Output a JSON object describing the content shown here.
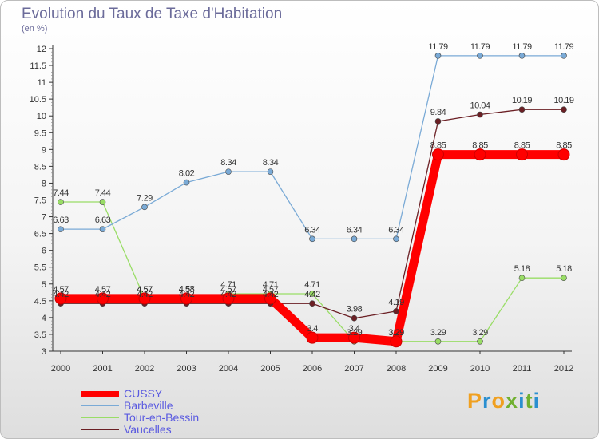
{
  "chart_data": {
    "type": "line",
    "title": "Evolution du Taux de Taxe d'Habitation",
    "ylabel": "(en %)",
    "categories": [
      "2000",
      "2001",
      "2002",
      "2003",
      "2004",
      "2005",
      "2006",
      "2007",
      "2008",
      "2009",
      "2010",
      "2011",
      "2012"
    ],
    "ylim": [
      3,
      12
    ],
    "yticks": [
      "3",
      "3.5",
      "4",
      "4.5",
      "5",
      "5.5",
      "6",
      "6.5",
      "7",
      "7.5",
      "8",
      "8.5",
      "9",
      "9.5",
      "10",
      "10.5",
      "11",
      "11.5",
      "12"
    ],
    "series": [
      {
        "name": "CUSSY",
        "color": "#ff0000",
        "values": [
          4.57,
          4.57,
          4.57,
          4.57,
          4.57,
          4.57,
          3.4,
          3.4,
          3.29,
          8.85,
          8.85,
          8.85,
          8.85
        ]
      },
      {
        "name": "Barbeville",
        "color": "#7aaad6",
        "values": [
          6.63,
          6.63,
          7.29,
          8.02,
          8.34,
          8.34,
          6.34,
          6.34,
          6.34,
          11.79,
          11.79,
          11.79,
          11.79
        ]
      },
      {
        "name": "Tour-en-Bessin",
        "color": "#99dd66",
        "values": [
          7.44,
          7.44,
          4.57,
          4.58,
          4.71,
          4.71,
          4.71,
          3.29,
          3.29,
          3.29,
          3.29,
          5.18,
          5.18
        ]
      },
      {
        "name": "Vaucelles",
        "color": "#6b1f24",
        "values": [
          4.42,
          4.42,
          4.42,
          4.42,
          4.42,
          4.42,
          4.42,
          3.98,
          4.19,
          9.84,
          10.04,
          10.19,
          10.19
        ]
      }
    ],
    "data_labels": [
      [
        "4.57",
        "4.57",
        "4.57",
        "4.57",
        "4.57",
        "4.57",
        "3.4",
        "3.4",
        "3.29",
        "8.85",
        "8.85",
        "8.85",
        "8.85"
      ],
      [
        "6.63",
        "6.63",
        "7.29",
        "8.02",
        "8.34",
        "8.34",
        "6.34",
        "6.34",
        "6.34",
        "11.79",
        "11.79",
        "11.79",
        "11.79"
      ],
      [
        "7.44",
        "7.44",
        "4.57",
        "4.58",
        "4.71",
        "4.71",
        "4.71",
        "3.29",
        "3.29",
        "3.29",
        "3.29",
        "5.18",
        "5.18"
      ],
      [
        "4.42",
        "4.42",
        "4.42",
        "4.42",
        "4.42",
        "4.42",
        "4.42",
        "3.98",
        "4.19",
        "9.84",
        "10.04",
        "10.19",
        "10.19"
      ]
    ],
    "legend": [
      "CUSSY",
      "Barbeville",
      "Tour-en-Bessin",
      "Vaucelles"
    ],
    "legend_position": "bottom-left"
  },
  "logo": {
    "text": "Proxiti",
    "colors": [
      "#f0a020",
      "#2a8fd0",
      "#f0a020",
      "#70b030",
      "#2a8fd0",
      "#70b030",
      "#2a8fd0"
    ]
  }
}
